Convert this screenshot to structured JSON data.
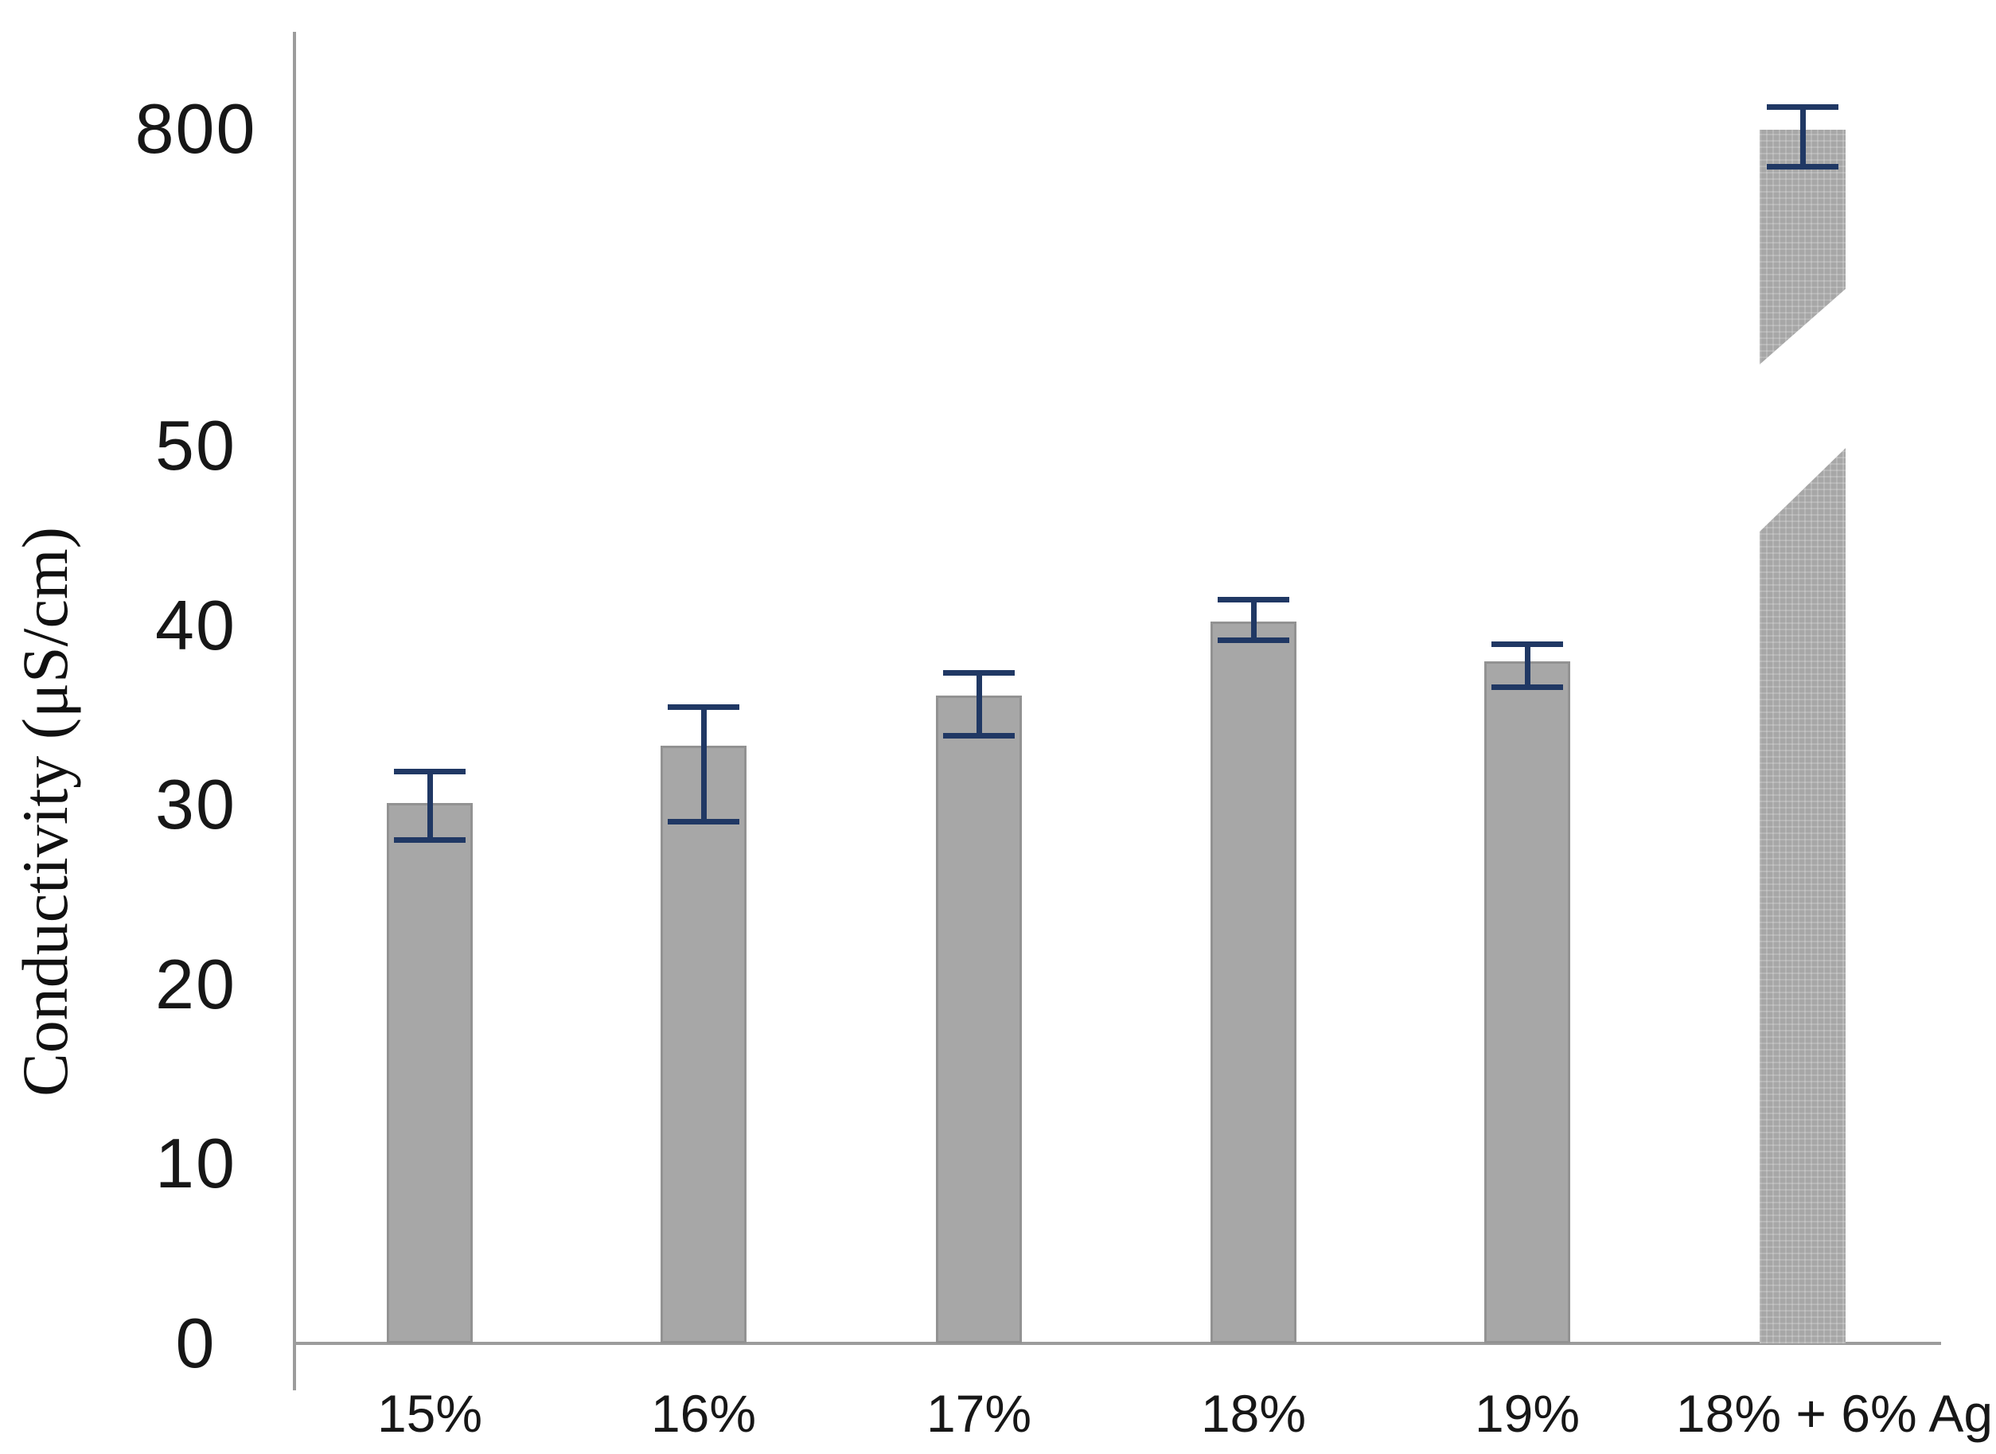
{
  "chart_data": {
    "type": "bar",
    "title": "",
    "xlabel": "",
    "ylabel": "Conductivity (μS/cm)",
    "categories": [
      "15%",
      "16%",
      "17%",
      "18%",
      "19%",
      "18% + 6% Ag"
    ],
    "values": [
      30.1,
      33.3,
      36.1,
      40.2,
      38.0,
      800
    ],
    "error_plus": [
      1.9,
      2.3,
      1.4,
      1.4,
      1.1,
      20
    ],
    "error_minus": [
      2.2,
      4.4,
      2.4,
      1.2,
      1.6,
      20
    ],
    "yticks": [
      0,
      10,
      20,
      30,
      40,
      50,
      800
    ],
    "axis_break": {
      "lower_max": 50,
      "upper_value": 800,
      "broken_bar_category": "18% + 6% Ag"
    },
    "legend": "none",
    "grid": "off",
    "bar_color": "#a7a7a7",
    "error_bar_color": "#203864",
    "axis_color": "#9c9c9c",
    "text_color": "#171717"
  }
}
